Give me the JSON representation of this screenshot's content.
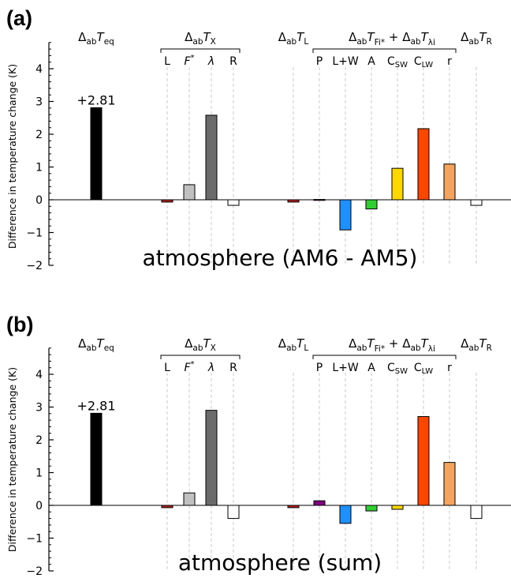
{
  "chart_data": [
    {
      "type": "bar",
      "panel_label": "(a)",
      "title": "atmosphere (AM6 - AM5)",
      "ylabel": "Difference in temperature change (K)",
      "ylim": [
        -2,
        4.8
      ],
      "yticks": [
        -2,
        -1,
        0,
        1,
        2,
        3,
        4
      ],
      "grid": false,
      "group_headers": [
        {
          "base": "Δ",
          "sub": "ab",
          "italic": "T",
          "sub2": "eq"
        },
        {
          "base": "Δ",
          "sub": "ab",
          "italic": "T",
          "sub2": "X"
        },
        {
          "base": "Δ",
          "sub": "ab",
          "italic": "T",
          "sub2": "L"
        },
        {
          "text": "Δ",
          "sub": "ab",
          "italic": "T",
          "sub2": "Fi*",
          "plus": "+ Δ",
          "sub3": "ab",
          "italic2": "T",
          "sub4": "λi"
        },
        {
          "base": "Δ",
          "sub": "ab",
          "italic": "T",
          "sub2": "R"
        }
      ],
      "categories": [
        "eq",
        "L",
        "F*",
        "λ",
        "R",
        "L",
        "P",
        "L+W",
        "A",
        "C_SW",
        "C_LW",
        "r",
        "R"
      ],
      "category_labels": [
        "",
        "L",
        "F*",
        "λ",
        "R",
        "",
        "P",
        "L+W",
        "A",
        "CSW",
        "CLW",
        "r",
        ""
      ],
      "values": [
        2.81,
        -0.07,
        0.46,
        2.58,
        -0.17,
        -0.07,
        0.01,
        -0.92,
        -0.28,
        0.96,
        2.17,
        1.09,
        -0.17
      ],
      "colors": [
        "#000000",
        "#b22222",
        "#c0c0c0",
        "#6b6b6b",
        "#ffffff",
        "#b22222",
        "#800080",
        "#1e90ff",
        "#32cd32",
        "#ffd700",
        "#ff4500",
        "#f4a460",
        "#ffffff"
      ],
      "annotations": [
        {
          "category_index": 0,
          "text": "+2.81"
        }
      ]
    },
    {
      "type": "bar",
      "panel_label": "(b)",
      "title": "atmosphere (sum)",
      "ylabel": "Difference in temperature change (K)",
      "ylim": [
        -2,
        4.8
      ],
      "yticks": [
        -2,
        -1,
        0,
        1,
        2,
        3,
        4
      ],
      "grid": false,
      "group_headers": [
        {
          "base": "Δ",
          "sub": "ab",
          "italic": "T",
          "sub2": "eq"
        },
        {
          "base": "Δ",
          "sub": "ab",
          "italic": "T",
          "sub2": "X"
        },
        {
          "base": "Δ",
          "sub": "ab",
          "italic": "T",
          "sub2": "L"
        },
        {
          "text": "Δ",
          "sub": "ab",
          "italic": "T",
          "sub2": "Fi*",
          "plus": "+ Δ",
          "sub3": "ab",
          "italic2": "T",
          "sub4": "λi"
        },
        {
          "base": "Δ",
          "sub": "ab",
          "italic": "T",
          "sub2": "R"
        }
      ],
      "categories": [
        "eq",
        "L",
        "F*",
        "λ",
        "R",
        "L",
        "P",
        "L+W",
        "A",
        "C_SW",
        "C_LW",
        "r",
        "R"
      ],
      "category_labels": [
        "",
        "L",
        "F*",
        "λ",
        "R",
        "",
        "P",
        "L+W",
        "A",
        "CSW",
        "CLW",
        "r",
        ""
      ],
      "values": [
        2.81,
        -0.07,
        0.38,
        2.9,
        -0.4,
        -0.07,
        0.14,
        -0.55,
        -0.17,
        -0.12,
        2.71,
        1.31,
        -0.4
      ],
      "colors": [
        "#000000",
        "#b22222",
        "#c0c0c0",
        "#6b6b6b",
        "#ffffff",
        "#b22222",
        "#800080",
        "#1e90ff",
        "#32cd32",
        "#ffd700",
        "#ff4500",
        "#f4a460",
        "#ffffff"
      ],
      "annotations": [
        {
          "category_index": 0,
          "text": "+2.81"
        }
      ]
    }
  ]
}
